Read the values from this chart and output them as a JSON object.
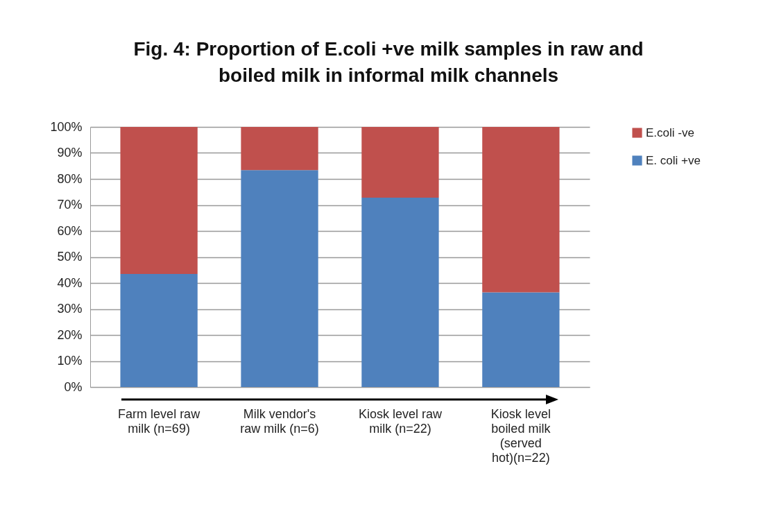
{
  "chart_data": {
    "type": "bar",
    "stacked": true,
    "title": "Fig. 4: Proportion of E.coli +ve milk samples  in raw and\nboiled milk in informal milk channels",
    "categories": [
      "Farm level raw\nmilk (n=69)",
      "Milk vendor's\nraw  milk (n=6)",
      "Kiosk level raw\nmilk (n=22)",
      "Kiosk level\nboiled milk\n(served\nhot)(n=22)"
    ],
    "series": [
      {
        "name": "E. coli +ve",
        "color": "#4f81bd",
        "values": [
          43.5,
          83.4,
          72.8,
          36.4
        ]
      },
      {
        "name": "E.coli -ve",
        "color": "#c0504d",
        "values": [
          56.5,
          16.6,
          27.2,
          63.6
        ]
      }
    ],
    "ylim": [
      0,
      100
    ],
    "yticks": [
      {
        "value": 0,
        "label": "0%"
      },
      {
        "value": 10,
        "label": "10%"
      },
      {
        "value": 20,
        "label": "20%"
      },
      {
        "value": 30,
        "label": "30%"
      },
      {
        "value": 40,
        "label": "40%"
      },
      {
        "value": 50,
        "label": "50%"
      },
      {
        "value": 60,
        "label": "60%"
      },
      {
        "value": 70,
        "label": "70%"
      },
      {
        "value": 80,
        "label": "80%"
      },
      {
        "value": 90,
        "label": "90%"
      },
      {
        "value": 100,
        "label": "100%"
      }
    ],
    "grid": "y",
    "legend": "right"
  }
}
